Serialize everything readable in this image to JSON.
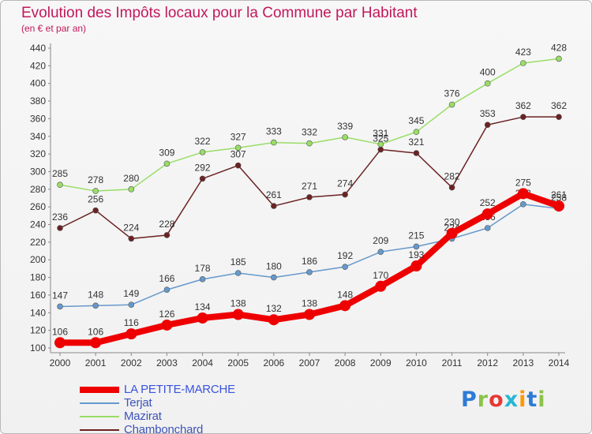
{
  "header": {
    "title": "Evolution des Impôts locaux pour la Commune par Habitant",
    "subtitle": "(en € et par an)"
  },
  "logo": {
    "text": "Proxiti",
    "colors": [
      "#2e7bd6",
      "#8bc34a",
      "#e53935",
      "#29b6d4",
      "#ff9800"
    ]
  },
  "chart_data": {
    "type": "line",
    "title": "Evolution des Impôts locaux pour la Commune par Habitant",
    "subtitle": "(en € et par an)",
    "x": [
      2000,
      2001,
      2002,
      2003,
      2004,
      2005,
      2006,
      2007,
      2008,
      2009,
      2010,
      2011,
      2012,
      2013,
      2014
    ],
    "ylim": [
      100,
      440
    ],
    "yticks": [
      100,
      120,
      140,
      160,
      180,
      200,
      220,
      240,
      260,
      280,
      300,
      320,
      340,
      360,
      380,
      400,
      420,
      440
    ],
    "grid": false,
    "legend": "bottom-left",
    "series": [
      {
        "name": "LA PETITE-MARCHE",
        "color": "#ee0000",
        "values": [
          106,
          106,
          116,
          126,
          134,
          138,
          132,
          138,
          148,
          170,
          193,
          230,
          252,
          275,
          261
        ]
      },
      {
        "name": "Terjat",
        "color": "#6699cc",
        "values": [
          147,
          148,
          149,
          166,
          178,
          185,
          180,
          186,
          192,
          209,
          215,
          224,
          236,
          263,
          258
        ]
      },
      {
        "name": "Mazirat",
        "color": "#99dd66",
        "values": [
          285,
          278,
          280,
          309,
          322,
          327,
          333,
          332,
          339,
          331,
          345,
          376,
          400,
          423,
          428
        ]
      },
      {
        "name": "Chambonchard",
        "color": "#6b2222",
        "values": [
          236,
          256,
          224,
          228,
          292,
          307,
          261,
          271,
          274,
          325,
          321,
          282,
          353,
          362,
          362
        ]
      }
    ]
  }
}
